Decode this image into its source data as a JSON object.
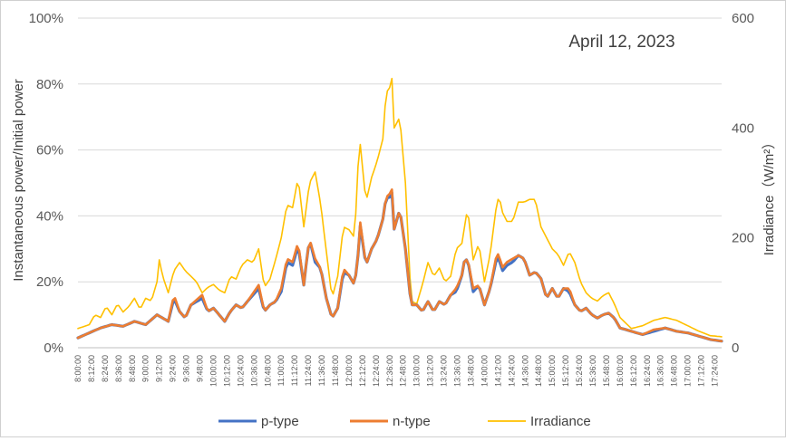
{
  "chart_data": {
    "type": "line",
    "annotation": "April 12, 2023",
    "ylabel": "Instantaneous power/Initial power",
    "y2label": "Irradiance（W/m²）",
    "ylim": [
      0,
      100
    ],
    "y2lim": [
      0,
      600
    ],
    "yticks": [
      "0%",
      "20%",
      "40%",
      "60%",
      "80%",
      "100%"
    ],
    "y2ticks": [
      "0",
      "200",
      "400",
      "600"
    ],
    "grid": true,
    "legend_position": "bottom",
    "x_start_minutes": 480,
    "x_step_minutes": 2,
    "x_end_minutes": 1050,
    "x_tick_labels": [
      "8:00:00",
      "8:12:00",
      "8:24:00",
      "8:36:00",
      "8:48:00",
      "9:00:00",
      "9:12:00",
      "9:24:00",
      "9:36:00",
      "9:48:00",
      "10:00:00",
      "10:12:00",
      "10:24:00",
      "10:36:00",
      "10:48:00",
      "11:00:00",
      "11:12:00",
      "11:24:00",
      "11:36:00",
      "11:48:00",
      "12:00:00",
      "12:12:00",
      "12:24:00",
      "12:36:00",
      "12:48:00",
      "13:00:00",
      "13:12:00",
      "13:24:00",
      "13:36:00",
      "13:48:00",
      "14:00:00",
      "14:12:00",
      "14:24:00",
      "14:36:00",
      "14:48:00",
      "15:00:00",
      "15:12:00",
      "15:24:00",
      "15:36:00",
      "15:48:00",
      "16:00:00",
      "16:12:00",
      "16:24:00",
      "16:36:00",
      "16:48:00",
      "17:00:00",
      "17:12:00",
      "17:24:00"
    ],
    "series": [
      {
        "name": "p-type",
        "axis": "left",
        "color": "#4472C4",
        "keypoints": [
          [
            480,
            3
          ],
          [
            490,
            4.5
          ],
          [
            500,
            6
          ],
          [
            510,
            7
          ],
          [
            520,
            6.5
          ],
          [
            530,
            8
          ],
          [
            540,
            7
          ],
          [
            550,
            10
          ],
          [
            560,
            8
          ],
          [
            565,
            15
          ],
          [
            570,
            11
          ],
          [
            575,
            9
          ],
          [
            580,
            13
          ],
          [
            590,
            15
          ],
          [
            595,
            11
          ],
          [
            600,
            12
          ],
          [
            605,
            10
          ],
          [
            610,
            8
          ],
          [
            615,
            11
          ],
          [
            620,
            13
          ],
          [
            625,
            12
          ],
          [
            630,
            14
          ],
          [
            640,
            18
          ],
          [
            645,
            11
          ],
          [
            650,
            13
          ],
          [
            655,
            14
          ],
          [
            660,
            17
          ],
          [
            665,
            26
          ],
          [
            670,
            25
          ],
          [
            675,
            31
          ],
          [
            680,
            19
          ],
          [
            682,
            25
          ],
          [
            685,
            33
          ],
          [
            690,
            26
          ],
          [
            695,
            24
          ],
          [
            700,
            15
          ],
          [
            705,
            9
          ],
          [
            710,
            12
          ],
          [
            715,
            23
          ],
          [
            720,
            22
          ],
          [
            725,
            19
          ],
          [
            728,
            28
          ],
          [
            730,
            37
          ],
          [
            735,
            25
          ],
          [
            740,
            30
          ],
          [
            745,
            33
          ],
          [
            750,
            39
          ],
          [
            753,
            46
          ],
          [
            755,
            45
          ],
          [
            758,
            47
          ],
          [
            760,
            36
          ],
          [
            765,
            42
          ],
          [
            770,
            30
          ],
          [
            775,
            13
          ],
          [
            780,
            13
          ],
          [
            785,
            11
          ],
          [
            790,
            14
          ],
          [
            795,
            11
          ],
          [
            800,
            14
          ],
          [
            805,
            13
          ],
          [
            810,
            16
          ],
          [
            815,
            17
          ],
          [
            820,
            22
          ],
          [
            822,
            26
          ],
          [
            825,
            27
          ],
          [
            830,
            17
          ],
          [
            835,
            19
          ],
          [
            840,
            13
          ],
          [
            845,
            18
          ],
          [
            850,
            26
          ],
          [
            853,
            28
          ],
          [
            855,
            23
          ],
          [
            860,
            25
          ],
          [
            865,
            26
          ],
          [
            870,
            28
          ],
          [
            875,
            27
          ],
          [
            880,
            22
          ],
          [
            885,
            23
          ],
          [
            890,
            21
          ],
          [
            895,
            15
          ],
          [
            900,
            18
          ],
          [
            905,
            15
          ],
          [
            910,
            18
          ],
          [
            915,
            17
          ],
          [
            920,
            13
          ],
          [
            925,
            11
          ],
          [
            930,
            12
          ],
          [
            935,
            10
          ],
          [
            940,
            9
          ],
          [
            945,
            10
          ],
          [
            950,
            10.5
          ],
          [
            955,
            9
          ],
          [
            960,
            6
          ],
          [
            970,
            5
          ],
          [
            980,
            4
          ],
          [
            990,
            5
          ],
          [
            1000,
            6
          ],
          [
            1010,
            5
          ],
          [
            1020,
            4.5
          ],
          [
            1030,
            3.5
          ],
          [
            1040,
            2.5
          ],
          [
            1050,
            2
          ]
        ]
      },
      {
        "name": "n-type",
        "axis": "left",
        "color": "#ED7D31",
        "keypoints": [
          [
            480,
            3
          ],
          [
            490,
            4.5
          ],
          [
            500,
            6
          ],
          [
            510,
            7
          ],
          [
            520,
            6.5
          ],
          [
            530,
            8
          ],
          [
            540,
            7
          ],
          [
            550,
            10
          ],
          [
            560,
            8
          ],
          [
            565,
            16
          ],
          [
            570,
            11
          ],
          [
            575,
            9
          ],
          [
            580,
            13
          ],
          [
            590,
            16
          ],
          [
            595,
            11
          ],
          [
            600,
            12
          ],
          [
            605,
            10
          ],
          [
            610,
            8
          ],
          [
            615,
            11
          ],
          [
            620,
            13
          ],
          [
            625,
            12
          ],
          [
            630,
            14
          ],
          [
            640,
            19
          ],
          [
            645,
            11
          ],
          [
            650,
            13
          ],
          [
            655,
            14
          ],
          [
            660,
            18
          ],
          [
            665,
            27
          ],
          [
            670,
            26
          ],
          [
            675,
            32
          ],
          [
            680,
            19
          ],
          [
            682,
            25
          ],
          [
            685,
            33
          ],
          [
            690,
            27
          ],
          [
            695,
            24
          ],
          [
            700,
            15
          ],
          [
            705,
            9
          ],
          [
            710,
            12
          ],
          [
            715,
            24
          ],
          [
            720,
            22
          ],
          [
            725,
            19
          ],
          [
            728,
            28
          ],
          [
            730,
            38
          ],
          [
            735,
            25
          ],
          [
            740,
            30
          ],
          [
            745,
            33
          ],
          [
            750,
            39
          ],
          [
            753,
            46
          ],
          [
            755,
            46
          ],
          [
            758,
            48
          ],
          [
            760,
            36
          ],
          [
            765,
            42
          ],
          [
            770,
            30
          ],
          [
            775,
            13
          ],
          [
            780,
            13
          ],
          [
            785,
            11
          ],
          [
            790,
            14
          ],
          [
            795,
            11
          ],
          [
            800,
            14
          ],
          [
            805,
            13
          ],
          [
            810,
            16
          ],
          [
            815,
            18
          ],
          [
            820,
            22
          ],
          [
            822,
            26
          ],
          [
            825,
            27
          ],
          [
            830,
            18
          ],
          [
            835,
            19
          ],
          [
            840,
            13
          ],
          [
            845,
            18
          ],
          [
            850,
            27
          ],
          [
            853,
            29
          ],
          [
            855,
            24
          ],
          [
            860,
            26
          ],
          [
            865,
            27
          ],
          [
            870,
            28
          ],
          [
            875,
            27
          ],
          [
            880,
            22
          ],
          [
            885,
            23
          ],
          [
            890,
            21
          ],
          [
            895,
            15
          ],
          [
            900,
            18
          ],
          [
            905,
            15
          ],
          [
            910,
            18
          ],
          [
            915,
            18
          ],
          [
            920,
            13
          ],
          [
            925,
            11
          ],
          [
            930,
            12
          ],
          [
            935,
            10
          ],
          [
            940,
            9
          ],
          [
            945,
            10
          ],
          [
            950,
            10.5
          ],
          [
            955,
            9
          ],
          [
            960,
            6
          ],
          [
            970,
            5
          ],
          [
            980,
            4
          ],
          [
            990,
            5.5
          ],
          [
            1000,
            6
          ],
          [
            1010,
            5
          ],
          [
            1020,
            4.5
          ],
          [
            1030,
            3.5
          ],
          [
            1040,
            2.5
          ],
          [
            1050,
            2
          ]
        ]
      },
      {
        "name": "Irradiance",
        "axis": "right",
        "color": "#FFC000",
        "keypoints": [
          [
            480,
            35
          ],
          [
            490,
            42
          ],
          [
            495,
            60
          ],
          [
            500,
            55
          ],
          [
            505,
            75
          ],
          [
            510,
            60
          ],
          [
            515,
            80
          ],
          [
            520,
            65
          ],
          [
            525,
            75
          ],
          [
            530,
            90
          ],
          [
            535,
            70
          ],
          [
            540,
            90
          ],
          [
            545,
            85
          ],
          [
            550,
            120
          ],
          [
            552,
            160
          ],
          [
            555,
            130
          ],
          [
            560,
            100
          ],
          [
            565,
            140
          ],
          [
            570,
            155
          ],
          [
            575,
            140
          ],
          [
            580,
            130
          ],
          [
            585,
            120
          ],
          [
            590,
            100
          ],
          [
            595,
            110
          ],
          [
            600,
            115
          ],
          [
            605,
            105
          ],
          [
            610,
            100
          ],
          [
            615,
            130
          ],
          [
            620,
            125
          ],
          [
            625,
            150
          ],
          [
            630,
            160
          ],
          [
            635,
            155
          ],
          [
            640,
            180
          ],
          [
            645,
            110
          ],
          [
            650,
            125
          ],
          [
            655,
            160
          ],
          [
            660,
            200
          ],
          [
            665,
            260
          ],
          [
            670,
            255
          ],
          [
            675,
            310
          ],
          [
            680,
            220
          ],
          [
            685,
            300
          ],
          [
            690,
            320
          ],
          [
            695,
            260
          ],
          [
            700,
            175
          ],
          [
            705,
            90
          ],
          [
            710,
            130
          ],
          [
            715,
            220
          ],
          [
            720,
            215
          ],
          [
            725,
            200
          ],
          [
            728,
            330
          ],
          [
            730,
            370
          ],
          [
            735,
            265
          ],
          [
            740,
            310
          ],
          [
            745,
            340
          ],
          [
            750,
            380
          ],
          [
            753,
            470
          ],
          [
            755,
            465
          ],
          [
            758,
            490
          ],
          [
            760,
            400
          ],
          [
            765,
            420
          ],
          [
            770,
            300
          ],
          [
            775,
            85
          ],
          [
            780,
            80
          ],
          [
            785,
            115
          ],
          [
            790,
            155
          ],
          [
            795,
            130
          ],
          [
            800,
            145
          ],
          [
            805,
            120
          ],
          [
            810,
            130
          ],
          [
            815,
            180
          ],
          [
            820,
            190
          ],
          [
            825,
            255
          ],
          [
            830,
            160
          ],
          [
            835,
            190
          ],
          [
            840,
            120
          ],
          [
            845,
            170
          ],
          [
            850,
            250
          ],
          [
            853,
            280
          ],
          [
            855,
            250
          ],
          [
            860,
            230
          ],
          [
            865,
            230
          ],
          [
            870,
            265
          ],
          [
            875,
            265
          ],
          [
            880,
            270
          ],
          [
            885,
            270
          ],
          [
            890,
            220
          ],
          [
            895,
            200
          ],
          [
            900,
            180
          ],
          [
            905,
            170
          ],
          [
            910,
            150
          ],
          [
            915,
            175
          ],
          [
            920,
            155
          ],
          [
            925,
            120
          ],
          [
            930,
            100
          ],
          [
            935,
            90
          ],
          [
            940,
            85
          ],
          [
            945,
            95
          ],
          [
            950,
            100
          ],
          [
            955,
            80
          ],
          [
            960,
            55
          ],
          [
            970,
            35
          ],
          [
            980,
            40
          ],
          [
            990,
            50
          ],
          [
            1000,
            55
          ],
          [
            1010,
            50
          ],
          [
            1020,
            40
          ],
          [
            1030,
            30
          ],
          [
            1040,
            22
          ],
          [
            1050,
            20
          ]
        ]
      }
    ]
  }
}
